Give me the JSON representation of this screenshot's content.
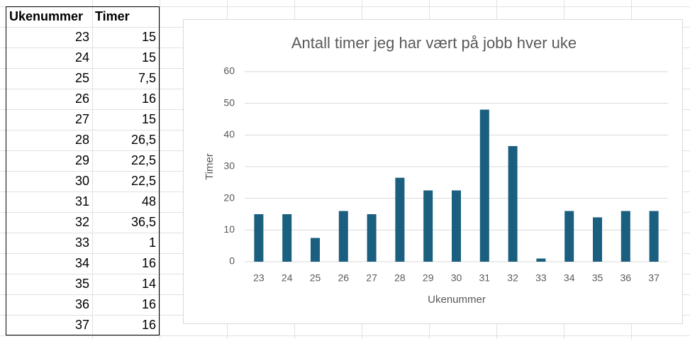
{
  "table": {
    "header": [
      "Ukenummer",
      "Timer"
    ],
    "rows": [
      [
        "23",
        "15"
      ],
      [
        "24",
        "15"
      ],
      [
        "25",
        "7,5"
      ],
      [
        "26",
        "16"
      ],
      [
        "27",
        "15"
      ],
      [
        "28",
        "26,5"
      ],
      [
        "29",
        "22,5"
      ],
      [
        "30",
        "22,5"
      ],
      [
        "31",
        "48"
      ],
      [
        "32",
        "36,5"
      ],
      [
        "33",
        "1"
      ],
      [
        "34",
        "16"
      ],
      [
        "35",
        "14"
      ],
      [
        "36",
        "16"
      ],
      [
        "37",
        "16"
      ]
    ]
  },
  "chart_data": {
    "type": "bar",
    "title": "Antall timer jeg har vært på jobb hver uke",
    "x_label": "Ukenummer",
    "y_label": "Timer",
    "categories": [
      "23",
      "24",
      "25",
      "26",
      "27",
      "28",
      "29",
      "30",
      "31",
      "32",
      "33",
      "34",
      "35",
      "36",
      "37"
    ],
    "values": [
      15,
      15,
      7.5,
      16,
      15,
      26.5,
      22.5,
      22.5,
      48,
      36.5,
      1,
      16,
      14,
      16,
      16
    ],
    "color": "#1a5f7f",
    "ylim": [
      0,
      60
    ],
    "yticks": [
      0,
      10,
      20,
      30,
      40,
      50,
      60
    ],
    "grid": true
  }
}
